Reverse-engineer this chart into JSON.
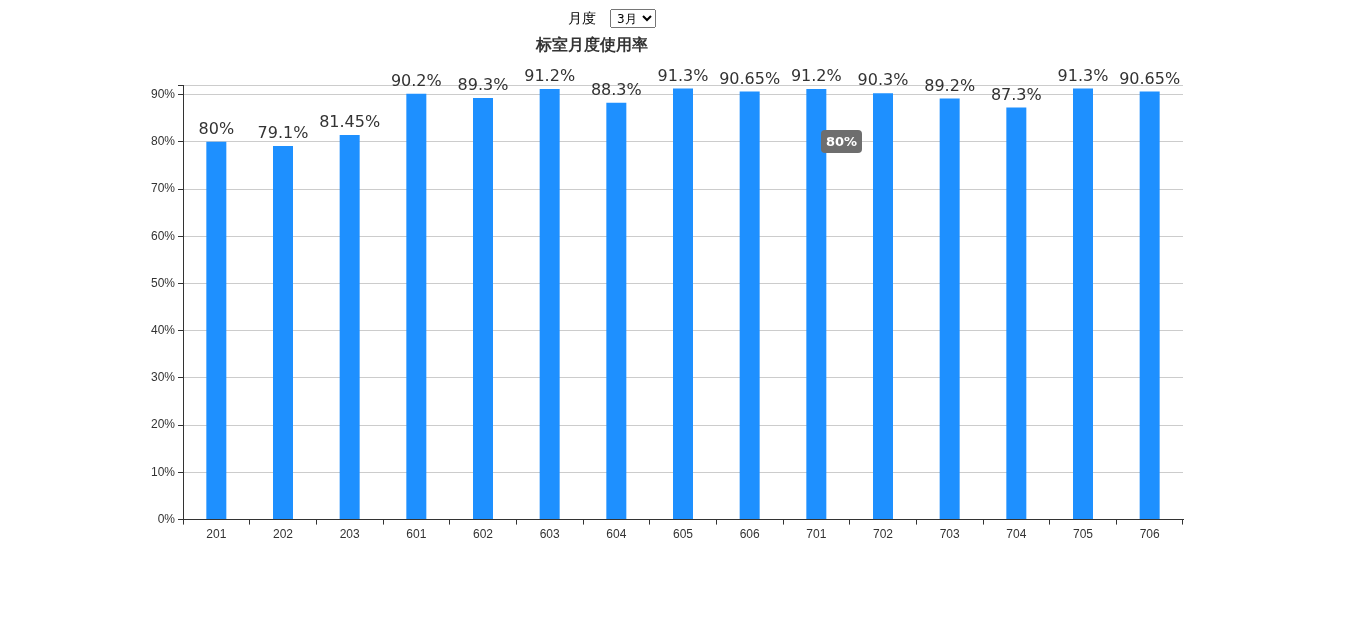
{
  "chart_data": {
    "type": "bar",
    "title": "标室月度使用率",
    "categories": [
      "201",
      "202",
      "203",
      "601",
      "602",
      "603",
      "604",
      "605",
      "606",
      "701",
      "702",
      "703",
      "704",
      "705",
      "706"
    ],
    "values": [
      80,
      79.1,
      81.45,
      90.2,
      89.3,
      91.2,
      88.3,
      91.3,
      90.65,
      91.2,
      90.3,
      89.2,
      87.3,
      91.3,
      90.65
    ],
    "value_labels": [
      "80%",
      "79.1%",
      "81.45%",
      "90.2%",
      "89.3%",
      "91.2%",
      "88.3%",
      "91.3%",
      "90.65%",
      "91.2%",
      "90.3%",
      "89.2%",
      "87.3%",
      "91.3%",
      "90.65%"
    ],
    "color": "#1e90ff",
    "ylim": [
      0,
      92
    ],
    "yticks": [
      {
        "value": 0,
        "label": "0%"
      },
      {
        "value": 10,
        "label": "10%"
      },
      {
        "value": 20,
        "label": "20%"
      },
      {
        "value": 30,
        "label": "30%"
      },
      {
        "value": 40,
        "label": "40%"
      },
      {
        "value": 50,
        "label": "50%"
      },
      {
        "value": 60,
        "label": "60%"
      },
      {
        "value": 70,
        "label": "70%"
      },
      {
        "value": 80,
        "label": "80%"
      },
      {
        "value": 90,
        "label": "90%"
      },
      {
        "value": 92,
        "label": null
      }
    ],
    "grid": "y",
    "legend": false,
    "annotations": [
      "月度",
      "3月",
      "80%"
    ]
  }
}
